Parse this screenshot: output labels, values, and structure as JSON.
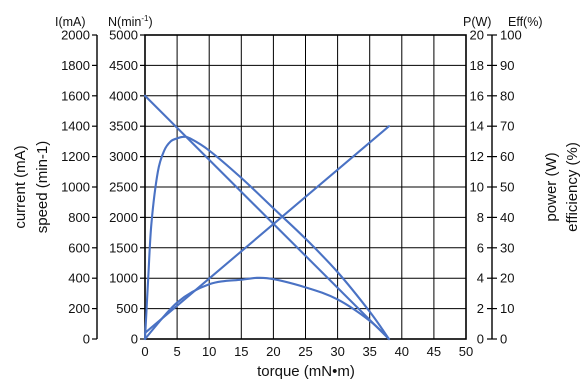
{
  "chart_data": {
    "type": "line",
    "colors": {
      "series": "#4a72c4",
      "grid": "#000000"
    },
    "grid": true,
    "x_axis": {
      "title": "torque (mN•m)",
      "range": [
        0,
        50
      ],
      "ticks": [
        0,
        5,
        10,
        15,
        20,
        25,
        30,
        35,
        40,
        45,
        50
      ]
    },
    "y_axes": {
      "current": {
        "unit_label": "I(mA)",
        "title": "current (mA)",
        "range": [
          0,
          2000
        ],
        "ticks": [
          0,
          200,
          400,
          600,
          800,
          1000,
          1200,
          1400,
          1600,
          1800,
          2000
        ]
      },
      "speed": {
        "unit_label": "N(min",
        "unit_sup": "-1",
        "unit_close": ")",
        "title": "speed (min-1)",
        "range": [
          0,
          5000
        ],
        "ticks": [
          0,
          500,
          1000,
          1500,
          2000,
          2500,
          3000,
          3500,
          4000,
          4500,
          5000
        ]
      },
      "power": {
        "unit_label": "P(W)",
        "title": "power (W)",
        "range": [
          0,
          20
        ],
        "ticks": [
          0,
          2,
          4,
          6,
          8,
          10,
          12,
          14,
          16,
          18,
          20
        ]
      },
      "efficiency": {
        "unit_label": "Eff(%)",
        "title": "efficiency (%)",
        "range": [
          0,
          100
        ],
        "ticks": [
          0,
          10,
          20,
          30,
          40,
          50,
          60,
          70,
          80,
          90,
          100
        ]
      }
    },
    "series": [
      {
        "axis": "current",
        "x": [
          0,
          38
        ],
        "y": [
          40,
          1400
        ]
      },
      {
        "axis": "speed",
        "x": [
          0,
          38
        ],
        "y": [
          4000,
          0
        ]
      },
      {
        "axis": "power",
        "x": [
          0,
          5,
          10,
          15,
          19,
          25,
          30,
          35,
          38
        ],
        "y": [
          0,
          2.4,
          3.6,
          3.9,
          4.0,
          3.4,
          2.6,
          1.2,
          0
        ]
      },
      {
        "axis": "efficiency",
        "x": [
          0,
          0.5,
          1,
          2,
          3,
          4,
          5,
          6,
          7,
          10,
          15,
          20,
          25,
          30,
          35,
          38
        ],
        "y": [
          0,
          20,
          38,
          55,
          62,
          65,
          66,
          66.5,
          66,
          62,
          53,
          43,
          33,
          22,
          9,
          0
        ]
      }
    ]
  }
}
